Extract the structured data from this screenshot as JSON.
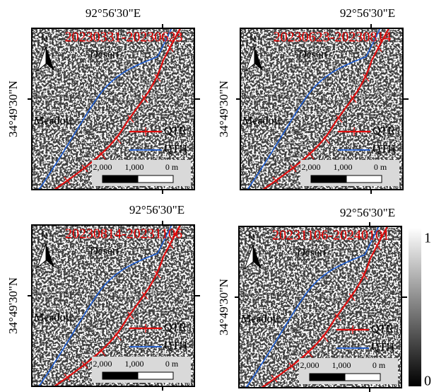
{
  "panels": [
    {
      "title": "20230331-20230623",
      "longitude": "92°56'30\"E",
      "latitude": "34°49'30\"N",
      "north": "N",
      "desert": "Desert",
      "meadow": "Meadow",
      "legend": [
        "QTR",
        "QTH"
      ],
      "scale": [
        "2,000",
        "1,000",
        "0 m"
      ]
    },
    {
      "title": "20230623-20230814",
      "longitude": "92°56'30\"E",
      "latitude": "34°49'30\"N",
      "north": "N",
      "desert": "Desert",
      "meadow": "Meadow",
      "legend": [
        "QTR",
        "QTH"
      ],
      "scale": [
        "2,000",
        "1,000",
        "0 m"
      ]
    },
    {
      "title": "20230814-20231106",
      "longitude": "92°56'30\"E",
      "latitude": "34°49'30\"N",
      "north": "N",
      "desert": "Desert",
      "meadow": "Meadow",
      "legend": [
        "QTR",
        "QTH"
      ],
      "scale": [
        "2,000",
        "1,000",
        "0 m"
      ]
    },
    {
      "title": "20231106-20240101",
      "longitude": "92°56'30\"E",
      "latitude": "34°49'30\"N",
      "north": "N",
      "desert": "Desert",
      "meadow": "Meadow",
      "legend": [
        "QTR",
        "QTH"
      ],
      "scale": [
        "2,000",
        "1,000",
        "0 m"
      ]
    }
  ],
  "colorbar": {
    "max": 1,
    "min": 0
  }
}
